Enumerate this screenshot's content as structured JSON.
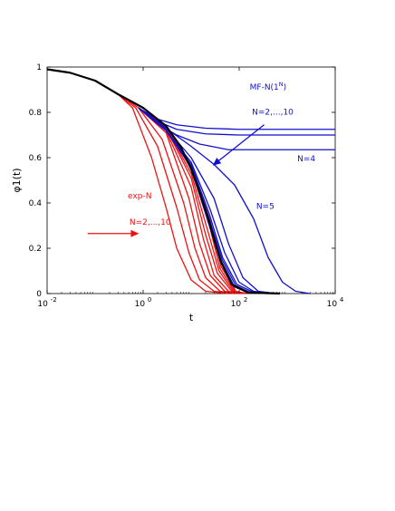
{
  "chart_data": {
    "type": "line",
    "xscale": "log",
    "xlim": [
      0.01,
      10000
    ],
    "ylim": [
      0,
      1
    ],
    "xlabel": "t",
    "ylabel": "φ1(t)",
    "xticks": [
      {
        "value": 0.01,
        "label": "10 -2"
      },
      {
        "value": 1,
        "label": "10 0"
      },
      {
        "value": 100,
        "label": "10 2"
      },
      {
        "value": 10000,
        "label": "10 4"
      }
    ],
    "yticks": [
      {
        "value": 0,
        "label": "0"
      },
      {
        "value": 0.2,
        "label": "0.2"
      },
      {
        "value": 0.4,
        "label": "0.4"
      },
      {
        "value": 0.6,
        "label": "0.6"
      },
      {
        "value": 0.8,
        "label": "0.8"
      },
      {
        "value": 1,
        "label": "1"
      }
    ],
    "grid": false,
    "colors": {
      "black": "#000000",
      "red": "#ee1111",
      "blue": "#1111cc"
    },
    "series": [
      {
        "group": "black",
        "points": [
          [
            0.01,
            0.99
          ],
          [
            0.03,
            0.975
          ],
          [
            0.1,
            0.94
          ],
          [
            0.3,
            0.88
          ],
          [
            1,
            0.82
          ],
          [
            3,
            0.74
          ],
          [
            6,
            0.65
          ],
          [
            10,
            0.55
          ],
          [
            20,
            0.37
          ],
          [
            40,
            0.15
          ],
          [
            70,
            0.04
          ],
          [
            150,
            0.005
          ],
          [
            700,
            0
          ]
        ]
      },
      {
        "group": "red",
        "points": [
          [
            0.1,
            0.94
          ],
          [
            0.3,
            0.88
          ],
          [
            0.6,
            0.82
          ],
          [
            1.5,
            0.6
          ],
          [
            3,
            0.38
          ],
          [
            5,
            0.2
          ],
          [
            10,
            0.06
          ],
          [
            20,
            0.01
          ],
          [
            60,
            0
          ]
        ]
      },
      {
        "group": "red",
        "points": [
          [
            0.3,
            0.88
          ],
          [
            0.7,
            0.82
          ],
          [
            2,
            0.65
          ],
          [
            5,
            0.38
          ],
          [
            9,
            0.18
          ],
          [
            15,
            0.06
          ],
          [
            30,
            0.01
          ],
          [
            80,
            0
          ]
        ]
      },
      {
        "group": "red",
        "points": [
          [
            0.5,
            0.85
          ],
          [
            0.8,
            0.82
          ],
          [
            2.5,
            0.68
          ],
          [
            7,
            0.4
          ],
          [
            12,
            0.2
          ],
          [
            20,
            0.07
          ],
          [
            40,
            0.01
          ],
          [
            90,
            0
          ]
        ]
      },
      {
        "group": "red",
        "points": [
          [
            0.8,
            0.82
          ],
          [
            3,
            0.71
          ],
          [
            9,
            0.42
          ],
          [
            15,
            0.22
          ],
          [
            25,
            0.08
          ],
          [
            50,
            0.01
          ],
          [
            100,
            0
          ]
        ]
      },
      {
        "group": "red",
        "points": [
          [
            0.8,
            0.82
          ],
          [
            3,
            0.72
          ],
          [
            10,
            0.47
          ],
          [
            18,
            0.24
          ],
          [
            30,
            0.08
          ],
          [
            60,
            0.01
          ],
          [
            110,
            0
          ]
        ]
      },
      {
        "group": "red",
        "points": [
          [
            0.8,
            0.82
          ],
          [
            3,
            0.73
          ],
          [
            10,
            0.51
          ],
          [
            20,
            0.26
          ],
          [
            35,
            0.09
          ],
          [
            70,
            0.01
          ],
          [
            120,
            0
          ]
        ]
      },
      {
        "group": "red",
        "points": [
          [
            0.8,
            0.82
          ],
          [
            3,
            0.735
          ],
          [
            10,
            0.53
          ],
          [
            22,
            0.28
          ],
          [
            38,
            0.1
          ],
          [
            75,
            0.01
          ],
          [
            130,
            0
          ]
        ]
      },
      {
        "group": "red",
        "points": [
          [
            0.8,
            0.82
          ],
          [
            3,
            0.74
          ],
          [
            10,
            0.55
          ],
          [
            24,
            0.3
          ],
          [
            40,
            0.11
          ],
          [
            80,
            0.01
          ],
          [
            140,
            0
          ]
        ]
      },
      {
        "group": "red",
        "points": [
          [
            0.8,
            0.82
          ],
          [
            3,
            0.74
          ],
          [
            10,
            0.56
          ],
          [
            25,
            0.32
          ],
          [
            42,
            0.12
          ],
          [
            85,
            0.01
          ],
          [
            150,
            0
          ]
        ]
      },
      {
        "group": "blue",
        "points": [
          [
            0.8,
            0.82
          ],
          [
            2,
            0.77
          ],
          [
            5,
            0.745
          ],
          [
            20,
            0.73
          ],
          [
            100,
            0.725
          ],
          [
            10000,
            0.725
          ]
        ]
      },
      {
        "group": "blue",
        "points": [
          [
            0.8,
            0.82
          ],
          [
            2,
            0.76
          ],
          [
            5,
            0.725
          ],
          [
            20,
            0.705
          ],
          [
            100,
            0.7
          ],
          [
            10000,
            0.7
          ]
        ]
      },
      {
        "group": "blue",
        "points": [
          [
            0.8,
            0.82
          ],
          [
            2,
            0.75
          ],
          [
            5,
            0.7
          ],
          [
            15,
            0.66
          ],
          [
            60,
            0.635
          ],
          [
            300,
            0.635
          ],
          [
            10000,
            0.635
          ]
        ]
      },
      {
        "group": "blue",
        "points": [
          [
            0.8,
            0.82
          ],
          [
            3,
            0.73
          ],
          [
            10,
            0.65
          ],
          [
            30,
            0.57
          ],
          [
            80,
            0.48
          ],
          [
            200,
            0.33
          ],
          [
            400,
            0.16
          ],
          [
            800,
            0.05
          ],
          [
            1500,
            0.01
          ],
          [
            3000,
            0
          ]
        ]
      },
      {
        "group": "blue",
        "points": [
          [
            0.8,
            0.82
          ],
          [
            3,
            0.73
          ],
          [
            10,
            0.6
          ],
          [
            30,
            0.42
          ],
          [
            60,
            0.22
          ],
          [
            120,
            0.07
          ],
          [
            250,
            0.01
          ],
          [
            600,
            0
          ]
        ]
      },
      {
        "group": "blue",
        "points": [
          [
            0.8,
            0.82
          ],
          [
            3,
            0.72
          ],
          [
            10,
            0.58
          ],
          [
            25,
            0.37
          ],
          [
            50,
            0.18
          ],
          [
            100,
            0.05
          ],
          [
            200,
            0.01
          ],
          [
            500,
            0
          ]
        ]
      },
      {
        "group": "blue",
        "points": [
          [
            0.8,
            0.82
          ],
          [
            3,
            0.72
          ],
          [
            10,
            0.57
          ],
          [
            24,
            0.35
          ],
          [
            45,
            0.16
          ],
          [
            90,
            0.04
          ],
          [
            180,
            0.01
          ],
          [
            450,
            0
          ]
        ]
      },
      {
        "group": "blue",
        "points": [
          [
            0.8,
            0.82
          ],
          [
            3,
            0.72
          ],
          [
            10,
            0.565
          ],
          [
            23,
            0.34
          ],
          [
            44,
            0.15
          ],
          [
            85,
            0.035
          ],
          [
            170,
            0.005
          ],
          [
            400,
            0
          ]
        ]
      },
      {
        "group": "blue",
        "points": [
          [
            0.8,
            0.82
          ],
          [
            3,
            0.72
          ],
          [
            10,
            0.56
          ],
          [
            22,
            0.33
          ],
          [
            43,
            0.14
          ],
          [
            80,
            0.03
          ],
          [
            160,
            0.005
          ],
          [
            380,
            0
          ]
        ]
      },
      {
        "group": "blue",
        "points": [
          [
            0.8,
            0.82
          ],
          [
            3,
            0.72
          ],
          [
            10,
            0.558
          ],
          [
            22,
            0.325
          ],
          [
            42,
            0.135
          ],
          [
            78,
            0.03
          ],
          [
            155,
            0.005
          ],
          [
            360,
            0
          ]
        ]
      }
    ],
    "annotations": [
      {
        "name": "mf-label",
        "text": "MF-N(1",
        "sup": "N",
        "tail": ")",
        "color": "blue",
        "x": 400,
        "y": 0.9
      },
      {
        "name": "mf-range-label",
        "text": "N=2,...,10",
        "color": "blue",
        "x": 500,
        "y": 0.79
      },
      {
        "name": "n4-label",
        "text": "N=4",
        "color": "blue",
        "x": 2500,
        "y": 0.585
      },
      {
        "name": "n5-label",
        "text": "N=5",
        "color": "blue",
        "x": 350,
        "y": 0.375
      },
      {
        "name": "exp-label",
        "text": "exp-N",
        "color": "red",
        "x": 0.85,
        "y": 0.42
      },
      {
        "name": "exp-range-label",
        "text": "N=2,...,10",
        "color": "red",
        "x": 1.4,
        "y": 0.305
      }
    ],
    "arrows": [
      {
        "name": "blue-arrow",
        "color": "blue",
        "from": [
          330,
          0.745
        ],
        "to": [
          28,
          0.565
        ]
      },
      {
        "name": "red-arrow",
        "color": "red",
        "from": [
          0.07,
          0.265
        ],
        "to": [
          0.82,
          0.265
        ]
      }
    ]
  }
}
